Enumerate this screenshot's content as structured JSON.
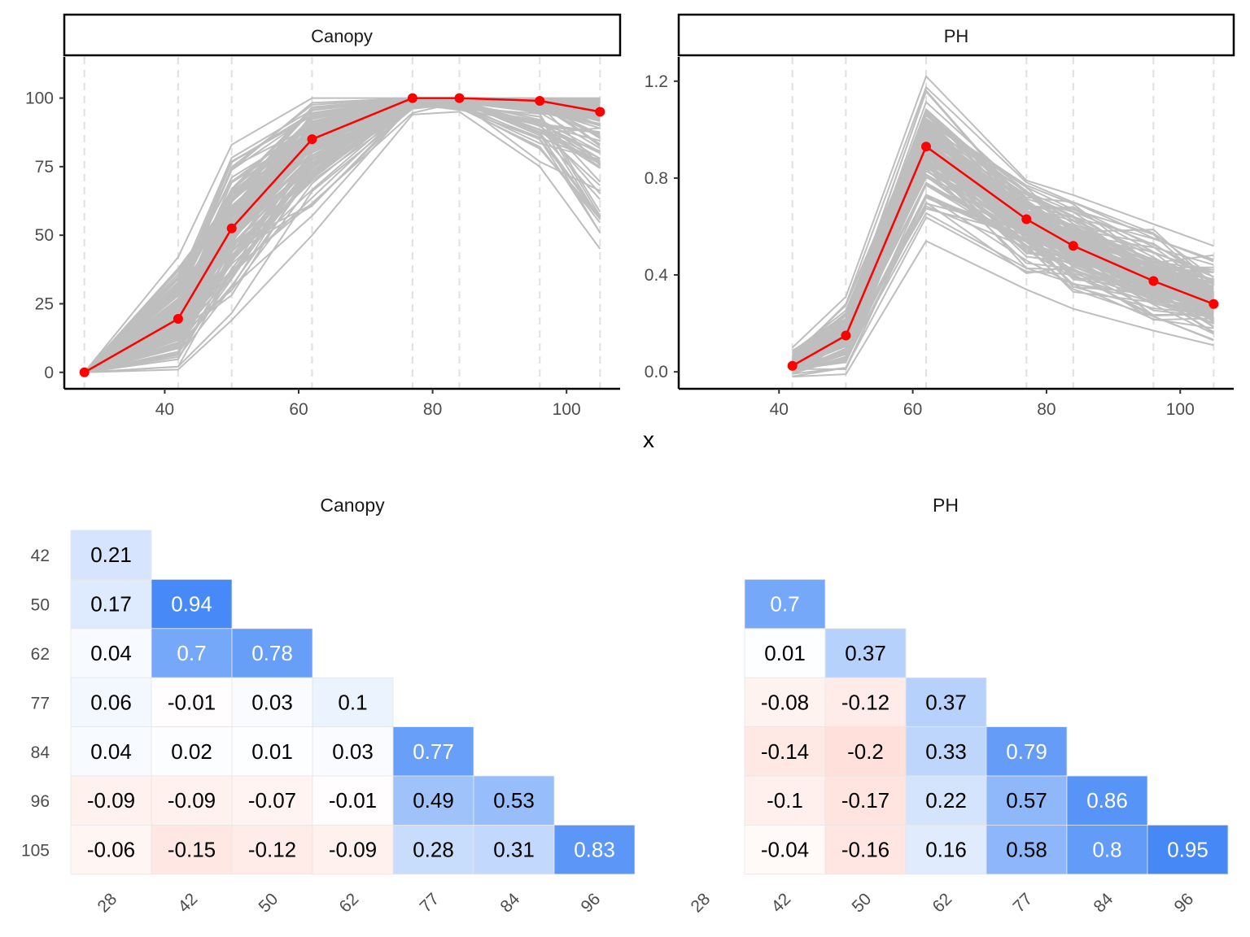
{
  "colors": {
    "background_line": "#bebebe",
    "mean_line": "#ff0000",
    "negative": "#ff6347",
    "positive": "#3b82f6",
    "neutral": "#ffffff"
  },
  "chart_data": [
    {
      "type": "line",
      "title": "Canopy",
      "xlabel": "x",
      "ylabel": "",
      "xlim": [
        25,
        108
      ],
      "ylim": [
        -6,
        115
      ],
      "x_ticks": [
        40,
        60,
        80,
        100
      ],
      "y_ticks": [
        0,
        25,
        50,
        75,
        100
      ],
      "x_tick_labels": [
        "40",
        "60",
        "80",
        "100"
      ],
      "y_tick_labels": [
        "0",
        "25",
        "50",
        "75",
        "100"
      ],
      "vlines": [
        28,
        42,
        50,
        62,
        77,
        84,
        96,
        105
      ],
      "series": [
        {
          "name": "mean",
          "x": [
            28,
            42,
            50,
            62,
            77,
            84,
            96,
            105
          ],
          "values": [
            0,
            19.5,
            52.5,
            85,
            100,
            100,
            99,
            95
          ]
        }
      ],
      "background_lines": {
        "count": 150,
        "x": [
          28,
          42,
          50,
          62,
          77,
          84,
          96,
          105
        ],
        "min": [
          0,
          1,
          19,
          50,
          94,
          95,
          75,
          45
        ],
        "max": [
          0,
          42,
          83,
          100,
          100,
          100,
          100,
          100
        ]
      }
    },
    {
      "type": "line",
      "title": "PH",
      "xlabel": "x",
      "ylabel": "",
      "xlim": [
        25,
        108
      ],
      "ylim": [
        -0.07,
        1.3
      ],
      "x_ticks": [
        40,
        60,
        80,
        100
      ],
      "y_ticks": [
        0.0,
        0.4,
        0.8,
        1.2
      ],
      "x_tick_labels": [
        "40",
        "60",
        "80",
        "100"
      ],
      "y_tick_labels": [
        "0.0",
        "0.4",
        "0.8",
        "1.2"
      ],
      "vlines": [
        42,
        50,
        62,
        77,
        84,
        96,
        105
      ],
      "series": [
        {
          "name": "mean",
          "x": [
            42,
            50,
            62,
            77,
            84,
            96,
            105
          ],
          "values": [
            0.025,
            0.15,
            0.93,
            0.63,
            0.52,
            0.375,
            0.28
          ]
        }
      ],
      "background_lines": {
        "count": 150,
        "x": [
          42,
          50,
          62,
          77,
          84,
          96,
          105
        ],
        "min": [
          -0.02,
          -0.01,
          0.54,
          0.34,
          0.26,
          0.17,
          0.11
        ],
        "max": [
          0.1,
          0.31,
          1.22,
          0.79,
          0.73,
          0.61,
          0.52
        ]
      }
    },
    {
      "type": "heatmap",
      "title": "Canopy",
      "x_labels": [
        "28",
        "42",
        "50",
        "62",
        "77",
        "84",
        "96"
      ],
      "y_labels": [
        "42",
        "50",
        "62",
        "77",
        "84",
        "96",
        "105"
      ],
      "rows": [
        [
          "0.21"
        ],
        [
          "0.17",
          "0.94"
        ],
        [
          "0.04",
          "0.7",
          "0.78"
        ],
        [
          "0.06",
          "-0.01",
          "0.03",
          "0.1"
        ],
        [
          "0.04",
          "0.02",
          "0.01",
          "0.03",
          "0.77"
        ],
        [
          "-0.09",
          "-0.09",
          "-0.07",
          "-0.01",
          "0.49",
          "0.53"
        ],
        [
          "-0.06",
          "-0.15",
          "-0.12",
          "-0.09",
          "0.28",
          "0.31",
          "0.83"
        ]
      ]
    },
    {
      "type": "heatmap",
      "title": "PH",
      "x_labels": [
        "28",
        "42",
        "50",
        "62",
        "77",
        "84",
        "96"
      ],
      "y_labels": [],
      "rows": [
        [],
        [
          "",
          "0.7"
        ],
        [
          "",
          "0.01",
          "0.37"
        ],
        [
          "",
          "-0.08",
          "-0.12",
          "0.37"
        ],
        [
          "",
          "-0.14",
          "-0.2",
          "0.33",
          "0.79"
        ],
        [
          "",
          "-0.1",
          "-0.17",
          "0.22",
          "0.57",
          "0.86"
        ],
        [
          "",
          "-0.04",
          "-0.16",
          "0.16",
          "0.58",
          "0.8",
          "0.95"
        ]
      ]
    }
  ]
}
